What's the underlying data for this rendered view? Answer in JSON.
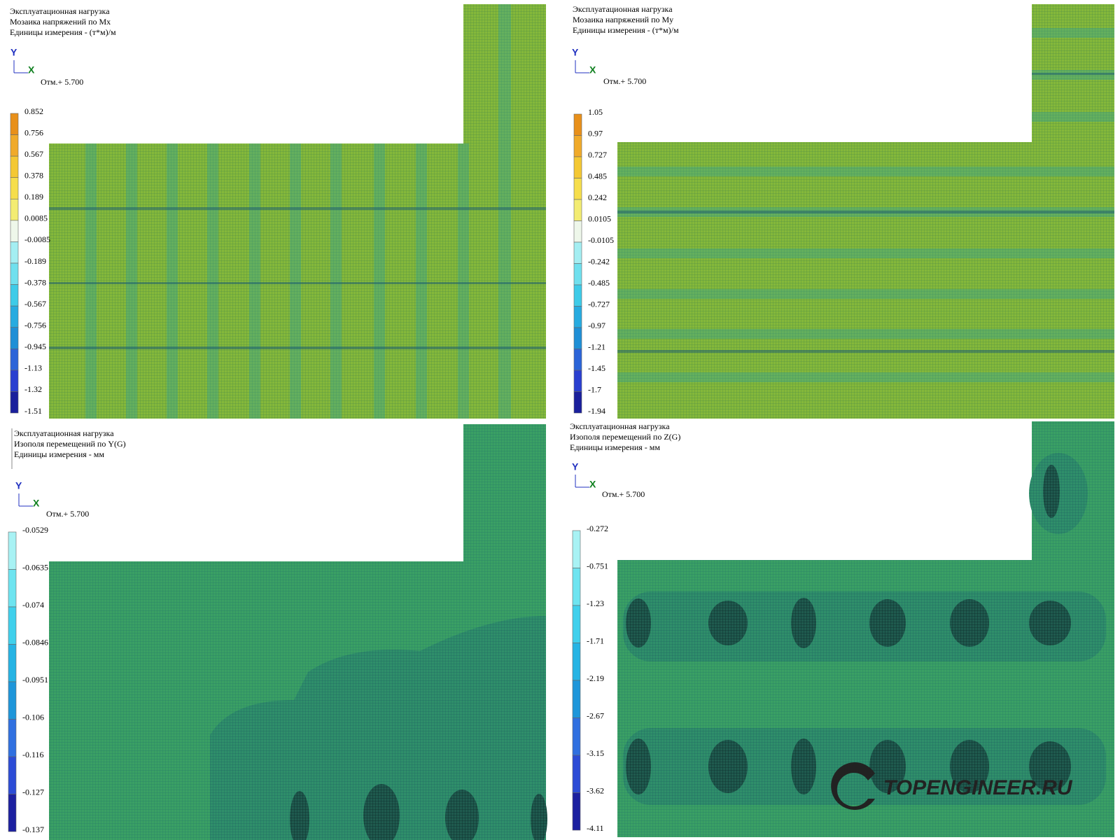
{
  "panels": [
    {
      "lines": [
        "Эксплуатационная нагрузка",
        "Мозаика напряжений по Mx",
        "Единицы измерения - (т*м)/м"
      ],
      "axis_y": "Y",
      "axis_x": "X",
      "level": "Отм.+ 5.700",
      "legend": [
        "0.852",
        "0.756",
        "0.567",
        "0.378",
        "0.189",
        "0.0085",
        "-0.0085",
        "-0.189",
        "-0.378",
        "-0.567",
        "-0.756",
        "-0.945",
        "-1.13",
        "-1.32",
        "-1.51"
      ],
      "legend_colors": [
        "#e8901a",
        "#f0aa2a",
        "#f4c833",
        "#f6de4c",
        "#f3ec72",
        "#eef7ea",
        "#a4eef2",
        "#70e0ee",
        "#3ecbe8",
        "#27abe0",
        "#1f8fd6",
        "#2b64d8",
        "#2a3fd0",
        "#1a1f9c"
      ]
    },
    {
      "lines": [
        "Эксплуатационная нагрузка",
        "Мозаика напряжений по My",
        "Единицы измерения - (т*м)/м"
      ],
      "axis_y": "Y",
      "axis_x": "X",
      "level": "Отм.+ 5.700",
      "legend": [
        "1.05",
        "0.97",
        "0.727",
        "0.485",
        "0.242",
        "0.0105",
        "-0.0105",
        "-0.242",
        "-0.485",
        "-0.727",
        "-0.97",
        "-1.21",
        "-1.45",
        "-1.7",
        "-1.94"
      ],
      "legend_colors": [
        "#e8901a",
        "#f0aa2a",
        "#f4c833",
        "#f6de4c",
        "#f3ec72",
        "#eef7ea",
        "#a4eef2",
        "#70e0ee",
        "#3ecbe8",
        "#27abe0",
        "#1f8fd6",
        "#2b64d8",
        "#2a3fd0",
        "#1a1f9c"
      ]
    },
    {
      "lines": [
        "Эксплуатационная нагрузка",
        "Изополя перемещений по Y(G)",
        "Единицы измерения - мм"
      ],
      "axis_y": "Y",
      "axis_x": "X",
      "level": "Отм.+ 5.700",
      "legend": [
        "-0.0529",
        "-0.0635",
        "-0.074",
        "-0.0846",
        "-0.0951",
        "-0.106",
        "-0.116",
        "-0.127",
        "-0.137"
      ],
      "legend_colors": [
        "#a8f2f4",
        "#6ee4f0",
        "#40d0ec",
        "#26b4e4",
        "#1e96da",
        "#3070e0",
        "#2c4cd6",
        "#1c20a0"
      ]
    },
    {
      "lines": [
        "Эксплуатационная нагрузка",
        "Изополя  перемещений по Z(G)",
        "Единицы измерения - мм"
      ],
      "axis_y": "Y",
      "axis_x": "X",
      "level": "Отм.+ 5.700",
      "legend": [
        "-0.272",
        "-0.751",
        "-1.23",
        "-1.71",
        "-2.19",
        "-2.67",
        "-3.15",
        "-3.62",
        "-4.11"
      ],
      "legend_colors": [
        "#a8f2f4",
        "#6ee4f0",
        "#40d0ec",
        "#26b4e4",
        "#1e96da",
        "#3070e0",
        "#2c4cd6",
        "#1c20a0"
      ]
    }
  ],
  "watermark": "TOPENGINEER.RU"
}
